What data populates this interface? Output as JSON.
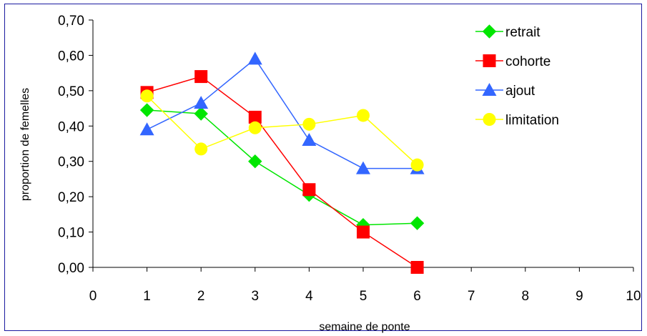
{
  "chart_data": {
    "type": "line",
    "title": "",
    "xlabel": "semaine de ponte",
    "ylabel": "proportion de femelles",
    "xlim": [
      0,
      10
    ],
    "ylim": [
      0,
      0.7
    ],
    "x_ticks": [
      "0",
      "1",
      "2",
      "3",
      "4",
      "5",
      "6",
      "7",
      "8",
      "9",
      "10"
    ],
    "y_ticks": [
      "0,00",
      "0,10",
      "0,20",
      "0,30",
      "0,40",
      "0,50",
      "0,60",
      "0,70"
    ],
    "grid": false,
    "legend_position": "top-right",
    "series": [
      {
        "name": "retrait",
        "color": "#00e600",
        "marker": "diamond",
        "x": [
          1,
          2,
          3,
          4,
          5,
          6
        ],
        "values": [
          0.445,
          0.435,
          0.3,
          0.205,
          0.12,
          0.125
        ]
      },
      {
        "name": "cohorte",
        "color": "#ff0000",
        "marker": "square",
        "x": [
          1,
          2,
          3,
          4,
          5,
          6
        ],
        "values": [
          0.495,
          0.54,
          0.425,
          0.22,
          0.1,
          0.0
        ]
      },
      {
        "name": "ajout",
        "color": "#3366ff",
        "marker": "triangle",
        "x": [
          1,
          2,
          3,
          4,
          5,
          6
        ],
        "values": [
          0.39,
          0.465,
          0.59,
          0.36,
          0.28,
          0.28
        ]
      },
      {
        "name": "limitation",
        "color": "#ffff00",
        "marker": "circle",
        "x": [
          1,
          2,
          3,
          4,
          5,
          6
        ],
        "values": [
          0.485,
          0.335,
          0.395,
          0.405,
          0.43,
          0.29
        ]
      }
    ]
  }
}
